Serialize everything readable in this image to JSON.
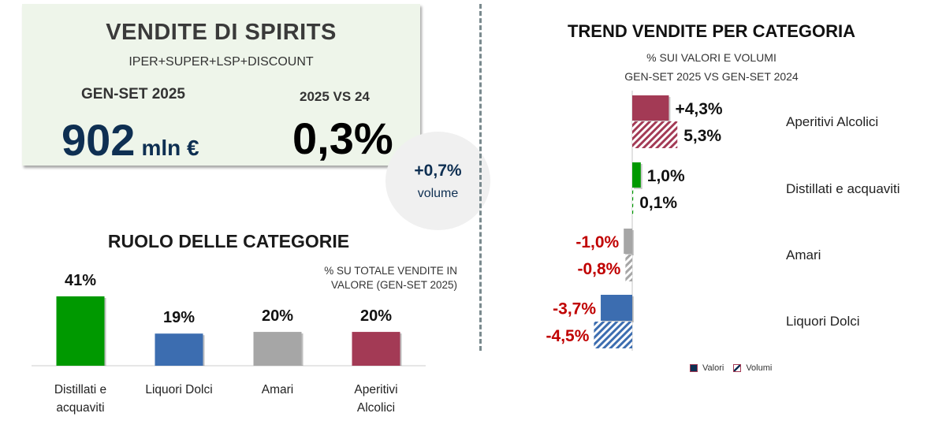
{
  "kpi": {
    "title": "VENDITE DI SPIRITS",
    "subtitle": "IPER+SUPER+LSP+DISCOUNT",
    "period_label": "GEN-SET 2025",
    "compare_label": "2025 VS 24",
    "value": "902",
    "value_unit": "mln €",
    "growth": "0,3%"
  },
  "volume_bubble": {
    "value": "+0,7%",
    "label": "volume"
  },
  "colors": {
    "aperitivi": "#a33a55",
    "distillati": "#009900",
    "amari": "#a6a6a6",
    "liquori": "#3c6db0",
    "negative_label": "#c00000",
    "navy": "#0e2f52"
  },
  "chart_data": [
    {
      "type": "bar",
      "title": "RUOLO DELLE CATEGORIE",
      "note": "% SU TOTALE VENDITE IN VALORE (GEN-SET 2025)",
      "note_lines": [
        "% SU TOTALE VENDITE IN",
        "VALORE (GEN-SET 2025)"
      ],
      "categories": [
        "Distillati e acquaviti",
        "Liquori Dolci",
        "Amari",
        "Aperitivi Alcolici"
      ],
      "category_lines": [
        [
          "Distillati e",
          "acquaviti"
        ],
        [
          "Liquori Dolci"
        ],
        [
          "Amari"
        ],
        [
          "Aperitivi",
          "Alcolici"
        ]
      ],
      "values": [
        41,
        19,
        20,
        20
      ],
      "labels": [
        "41%",
        "19%",
        "20%",
        "20%"
      ],
      "colors": [
        "#009900",
        "#3c6db0",
        "#a6a6a6",
        "#a33a55"
      ],
      "xlabel": "",
      "ylabel": "",
      "grid": false
    },
    {
      "type": "bar",
      "orientation": "horizontal",
      "title": "TREND VENDITE PER CATEGORIA",
      "subtitle_lines": [
        "% SUI VALORI E VOLUMI",
        "GEN-SET 2025 VS GEN-SET 2024"
      ],
      "categories": [
        "Aperitivi Alcolici",
        "Distillati e acquaviti",
        "Amari",
        "Liquori Dolci"
      ],
      "colors": [
        "#a33a55",
        "#009900",
        "#a6a6a6",
        "#3c6db0"
      ],
      "series": [
        {
          "name": "Valori",
          "values": [
            4.3,
            1.0,
            -1.0,
            -3.7
          ],
          "labels": [
            "+4,3%",
            "1,0%",
            "-1,0%",
            "-3,7%"
          ],
          "style": "solid"
        },
        {
          "name": "Volumi",
          "values": [
            5.3,
            0.1,
            -0.8,
            -4.5
          ],
          "labels": [
            "5,3%",
            "0,1%",
            "-0,8%",
            "-4,5%"
          ],
          "style": "hatched"
        }
      ],
      "legend": [
        "Valori",
        "Volumi"
      ],
      "legend_position": "bottom",
      "grid": false
    }
  ]
}
